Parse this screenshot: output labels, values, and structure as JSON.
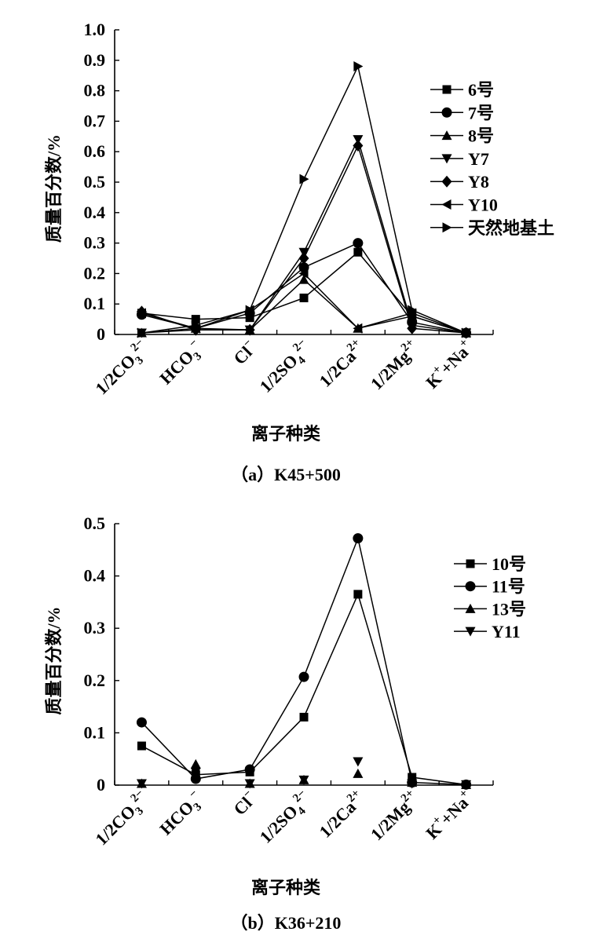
{
  "chart_data": [
    {
      "type": "line",
      "caption": "（a）K45+500",
      "xlabel": "离子种类",
      "ylabel": "质量百分数/%",
      "categories": [
        {
          "base": "1/2CO",
          "sub": "3",
          "sup": "2−"
        },
        {
          "base": "HCO",
          "sub": "3",
          "sup": "−"
        },
        {
          "base": "Cl",
          "sub": "",
          "sup": "−"
        },
        {
          "base": "1/2SO",
          "sub": "4",
          "sup": "2−"
        },
        {
          "base": "1/2Ca",
          "sub": "",
          "sup": "2+"
        },
        {
          "base": "1/2Mg",
          "sub": "",
          "sup": "2+"
        },
        {
          "base": "K",
          "sub": "",
          "sup": "+",
          "base2": "+Na",
          "sup2": "+"
        }
      ],
      "ylim": [
        0,
        1.0
      ],
      "yticks": [
        {
          "value": 0,
          "label": "0"
        },
        {
          "value": 0.1,
          "label": "0.1"
        },
        {
          "value": 0.2,
          "label": "0.2"
        },
        {
          "value": 0.3,
          "label": "0.3"
        },
        {
          "value": 0.4,
          "label": "0.4"
        },
        {
          "value": 0.5,
          "label": "0.5"
        },
        {
          "value": 0.6,
          "label": "0.6"
        },
        {
          "value": 0.7,
          "label": "0.7"
        },
        {
          "value": 0.8,
          "label": "0.8"
        },
        {
          "value": 0.9,
          "label": "0.9"
        },
        {
          "value": 1.0,
          "label": "1.0"
        }
      ],
      "legend_position": "top-right",
      "grid": false,
      "series": [
        {
          "name": "6号",
          "marker": "square",
          "values": [
            0.07,
            0.05,
            0.055,
            0.12,
            0.27,
            0.06,
            0.005
          ]
        },
        {
          "name": "7号",
          "marker": "circle",
          "values": [
            0.065,
            0.02,
            0.07,
            0.22,
            0.3,
            0.04,
            0.005
          ]
        },
        {
          "name": "8号",
          "marker": "triangle-up",
          "values": [
            0.005,
            0.02,
            0.015,
            0.18,
            0.02,
            0.06,
            0.005
          ]
        },
        {
          "name": "Y7",
          "marker": "triangle-down",
          "values": [
            0.005,
            0.015,
            0.015,
            0.27,
            0.64,
            0.03,
            0.005
          ]
        },
        {
          "name": "Y8",
          "marker": "diamond",
          "values": [
            0.075,
            0.015,
            0.015,
            0.25,
            0.62,
            0.02,
            0.005
          ]
        },
        {
          "name": "Y10",
          "marker": "triangle-left",
          "values": [
            0.07,
            0.02,
            0.08,
            0.2,
            0.02,
            0.07,
            0.005
          ]
        },
        {
          "name": "天然地基土",
          "marker": "triangle-right",
          "values": [
            0.005,
            0.03,
            0.08,
            0.51,
            0.88,
            0.08,
            0.005
          ]
        }
      ]
    },
    {
      "type": "line",
      "caption": "（b）K36+210",
      "xlabel": "离子种类",
      "ylabel": "质量百分数/%",
      "categories": [
        {
          "base": "1/2CO",
          "sub": "3",
          "sup": "2−"
        },
        {
          "base": "HCO",
          "sub": "3",
          "sup": "−"
        },
        {
          "base": "Cl",
          "sub": "",
          "sup": "−"
        },
        {
          "base": "1/2SO",
          "sub": "4",
          "sup": "2−"
        },
        {
          "base": "1/2Ca",
          "sub": "",
          "sup": "2+"
        },
        {
          "base": "1/2Mg",
          "sub": "",
          "sup": "2+"
        },
        {
          "base": "K",
          "sub": "",
          "sup": "+",
          "base2": "+Na",
          "sup2": "+"
        }
      ],
      "ylim": [
        0,
        0.5
      ],
      "yticks": [
        {
          "value": 0,
          "label": "0"
        },
        {
          "value": 0.1,
          "label": "0.1"
        },
        {
          "value": 0.2,
          "label": "0.2"
        },
        {
          "value": 0.3,
          "label": "0.3"
        },
        {
          "value": 0.4,
          "label": "0.4"
        },
        {
          "value": 0.5,
          "label": "0.5"
        }
      ],
      "legend_position": "top-right",
      "grid": false,
      "series": [
        {
          "name": "10号",
          "marker": "square",
          "values": [
            0.075,
            0.02,
            0.025,
            0.13,
            0.365,
            0.015,
            0.001
          ]
        },
        {
          "name": "11号",
          "marker": "circle",
          "values": [
            0.12,
            0.012,
            0.03,
            0.207,
            0.472,
            0.005,
            0.001
          ]
        },
        {
          "name": "13号",
          "marker": "triangle-up",
          "values": [
            0.003,
            0.04,
            0.003,
            0.01,
            0.022,
            0.005,
            0.001
          ],
          "line": false
        },
        {
          "name": "Y11",
          "marker": "triangle-down",
          "values": [
            0.003,
            0.025,
            0.003,
            0.01,
            0.045,
            0.003,
            0.001
          ],
          "line": false
        }
      ]
    }
  ]
}
